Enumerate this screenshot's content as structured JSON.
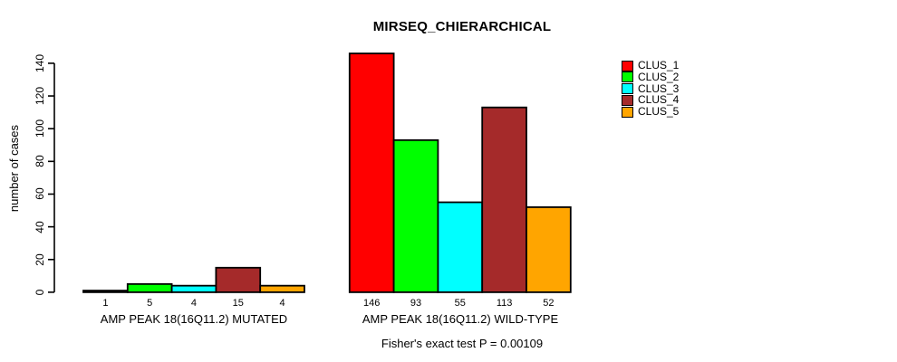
{
  "figure": {
    "background": "#ffffff",
    "text_color": "#000000"
  },
  "chart_data": {
    "type": "bar",
    "title": "MIRSEQ_CHIERARCHICAL",
    "xlabel": "",
    "ylabel": "number of cases",
    "ylim": [
      0,
      146
    ],
    "yticks": [
      0,
      20,
      40,
      60,
      80,
      100,
      120,
      140
    ],
    "grid": false,
    "legend_position": "top-right",
    "bar_value_labels_shown": true,
    "categories": [
      "AMP PEAK 18(16Q11.2) MUTATED",
      "AMP PEAK 18(16Q11.2) WILD-TYPE"
    ],
    "series": [
      {
        "name": "CLUS_1",
        "color": "#FF0000",
        "values": [
          1,
          146
        ]
      },
      {
        "name": "CLUS_2",
        "color": "#00FF00",
        "values": [
          5,
          93
        ]
      },
      {
        "name": "CLUS_3",
        "color": "#00FFFF",
        "values": [
          4,
          55
        ]
      },
      {
        "name": "CLUS_4",
        "color": "#A52A2A",
        "values": [
          15,
          113
        ]
      },
      {
        "name": "CLUS_5",
        "color": "#FFA500",
        "values": [
          4,
          52
        ]
      }
    ],
    "groups": [
      {
        "label": "AMP PEAK 18(16Q11.2) MUTATED",
        "values": [
          1,
          5,
          4,
          15,
          4
        ]
      },
      {
        "label": "AMP PEAK 18(16Q11.2) WILD-TYPE",
        "values": [
          146,
          93,
          55,
          113,
          52
        ]
      }
    ],
    "annotation": "Fisher's exact test P = 0.00109"
  }
}
